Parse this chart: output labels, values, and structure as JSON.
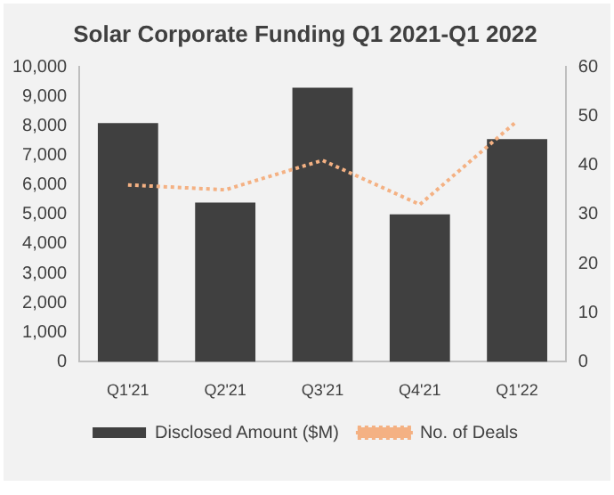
{
  "chart_data": {
    "type": "bar",
    "title": "Solar Corporate Funding Q1 2021-Q1 2022",
    "categories": [
      "Q1'21",
      "Q2'21",
      "Q3'21",
      "Q4'21",
      "Q1'22"
    ],
    "series": [
      {
        "name": "Disclosed Amount ($M)",
        "color": "#404040",
        "values": [
          8100,
          5400,
          9300,
          5000,
          7550
        ]
      },
      {
        "name": "No. of Deals",
        "type": "line",
        "axis": "y2",
        "color": "#f4b183",
        "line_style": "dotted",
        "values": [
          36,
          35,
          41,
          32,
          49
        ]
      }
    ],
    "ylim": [
      0,
      10000
    ],
    "yticks": [
      0,
      {
        "value": 1000,
        "label": "1,000"
      },
      {
        "value": 2000,
        "label": "2,000"
      },
      {
        "value": 3000,
        "label": "3,000"
      },
      {
        "value": 4000,
        "label": "4,000"
      },
      {
        "value": 5000,
        "label": "5,000"
      },
      {
        "value": 6000,
        "label": "6,000"
      },
      {
        "value": 7000,
        "label": "7,000"
      },
      {
        "value": 8000,
        "label": "8,000"
      },
      {
        "value": 9000,
        "label": "9,000"
      },
      {
        "value": 10000,
        "label": "10,000"
      }
    ],
    "y2lim": [
      0,
      60
    ],
    "y2ticks": [
      0,
      10,
      20,
      30,
      40,
      50,
      60
    ],
    "grid": false,
    "legend": "bottom",
    "marker": "none"
  }
}
